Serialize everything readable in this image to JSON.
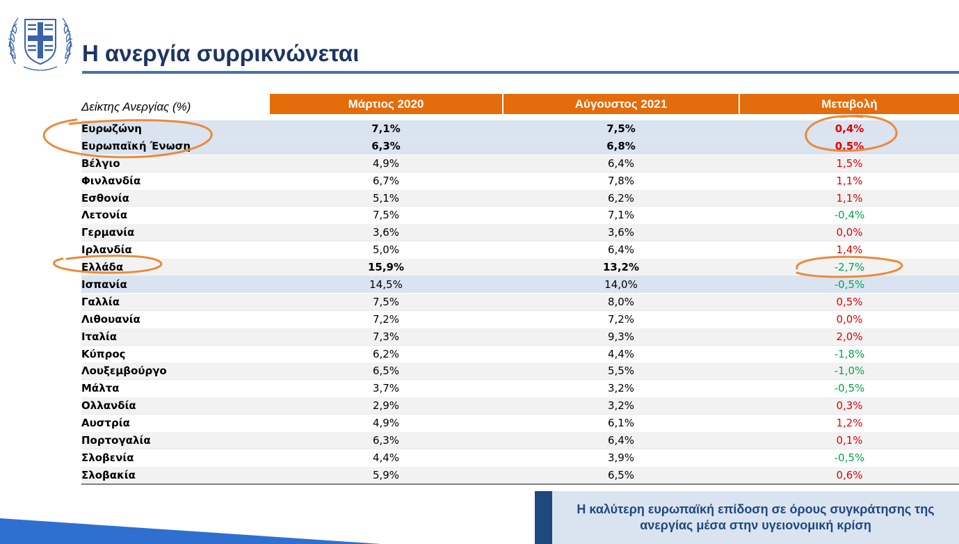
{
  "title": "Η ανεργία συρρικνώνεται",
  "table": {
    "label": "Δείκτης Ανεργίας (%)",
    "columns": [
      "Μάρτιος 2020",
      "Αύγουστος 2021",
      "Μεταβολή"
    ],
    "rows": [
      {
        "country": "Ευρωζώνη",
        "march_2020": "7,1%",
        "august_2021": "7,5%",
        "change": "0,4%"
      },
      {
        "country": "Ευρωπαϊκή Ένωση",
        "march_2020": "6,3%",
        "august_2021": "6,8%",
        "change": "0,5%"
      },
      {
        "country": "Βέλγιο",
        "march_2020": "4,9%",
        "august_2021": "6,4%",
        "change": "1,5%"
      },
      {
        "country": "Φινλανδία",
        "march_2020": "6,7%",
        "august_2021": "7,8%",
        "change": "1,1%"
      },
      {
        "country": "Εσθονία",
        "march_2020": "5,1%",
        "august_2021": "6,2%",
        "change": "1,1%"
      },
      {
        "country": "Λετονία",
        "march_2020": "7,5%",
        "august_2021": "7,1%",
        "change": "-0,4%"
      },
      {
        "country": "Γερμανία",
        "march_2020": "3,6%",
        "august_2021": "3,6%",
        "change": "0,0%"
      },
      {
        "country": "Ιρλανδία",
        "march_2020": "5,0%",
        "august_2021": "6,4%",
        "change": "1,4%"
      },
      {
        "country": "Ελλάδα",
        "march_2020": "15,9%",
        "august_2021": "13,2%",
        "change": "-2,7%"
      },
      {
        "country": "Ισπανία",
        "march_2020": "14,5%",
        "august_2021": "14,0%",
        "change": "-0,5%"
      },
      {
        "country": "Γαλλία",
        "march_2020": "7,5%",
        "august_2021": "8,0%",
        "change": "0,5%"
      },
      {
        "country": "Λιθουανία",
        "march_2020": "7,2%",
        "august_2021": "7,2%",
        "change": "0,0%"
      },
      {
        "country": "Ιταλία",
        "march_2020": "7,3%",
        "august_2021": "9,3%",
        "change": "2,0%"
      },
      {
        "country": "Κύπρος",
        "march_2020": "6,2%",
        "august_2021": "4,4%",
        "change": "-1,8%"
      },
      {
        "country": "Λουξεμβούργο",
        "march_2020": "6,5%",
        "august_2021": "5,5%",
        "change": "-1,0%"
      },
      {
        "country": "Μάλτα",
        "march_2020": "3,7%",
        "august_2021": "3,2%",
        "change": "-0,5%"
      },
      {
        "country": "Ολλανδία",
        "march_2020": "2,9%",
        "august_2021": "3,2%",
        "change": "0,3%"
      },
      {
        "country": "Αυστρία",
        "march_2020": "4,9%",
        "august_2021": "6,1%",
        "change": "1,2%"
      },
      {
        "country": "Πορτογαλία",
        "march_2020": "6,3%",
        "august_2021": "6,4%",
        "change": "0,1%"
      },
      {
        "country": "Σλοβενία",
        "march_2020": "4,4%",
        "august_2021": "3,9%",
        "change": "-0,5%"
      },
      {
        "country": "Σλοβακία",
        "march_2020": "5,9%",
        "august_2021": "6,5%",
        "change": "0,6%"
      }
    ]
  },
  "callout": "Η καλύτερη ευρωπαϊκή επίδοση σε όρους συγκράτησης της ανεργίας μέσα στην υγειονομική κρίση",
  "colors": {
    "title": "#1d3563",
    "header_bg": "#e46c0a",
    "increase": "#e00000",
    "decrease": "#00a550",
    "annotation": "#e98a3a",
    "callout_bg": "#dae3f0",
    "callout_bar": "#1f497d",
    "wedge": "#2f6fd0"
  },
  "icons": {
    "emblem": "greek-coat-of-arms-icon"
  }
}
